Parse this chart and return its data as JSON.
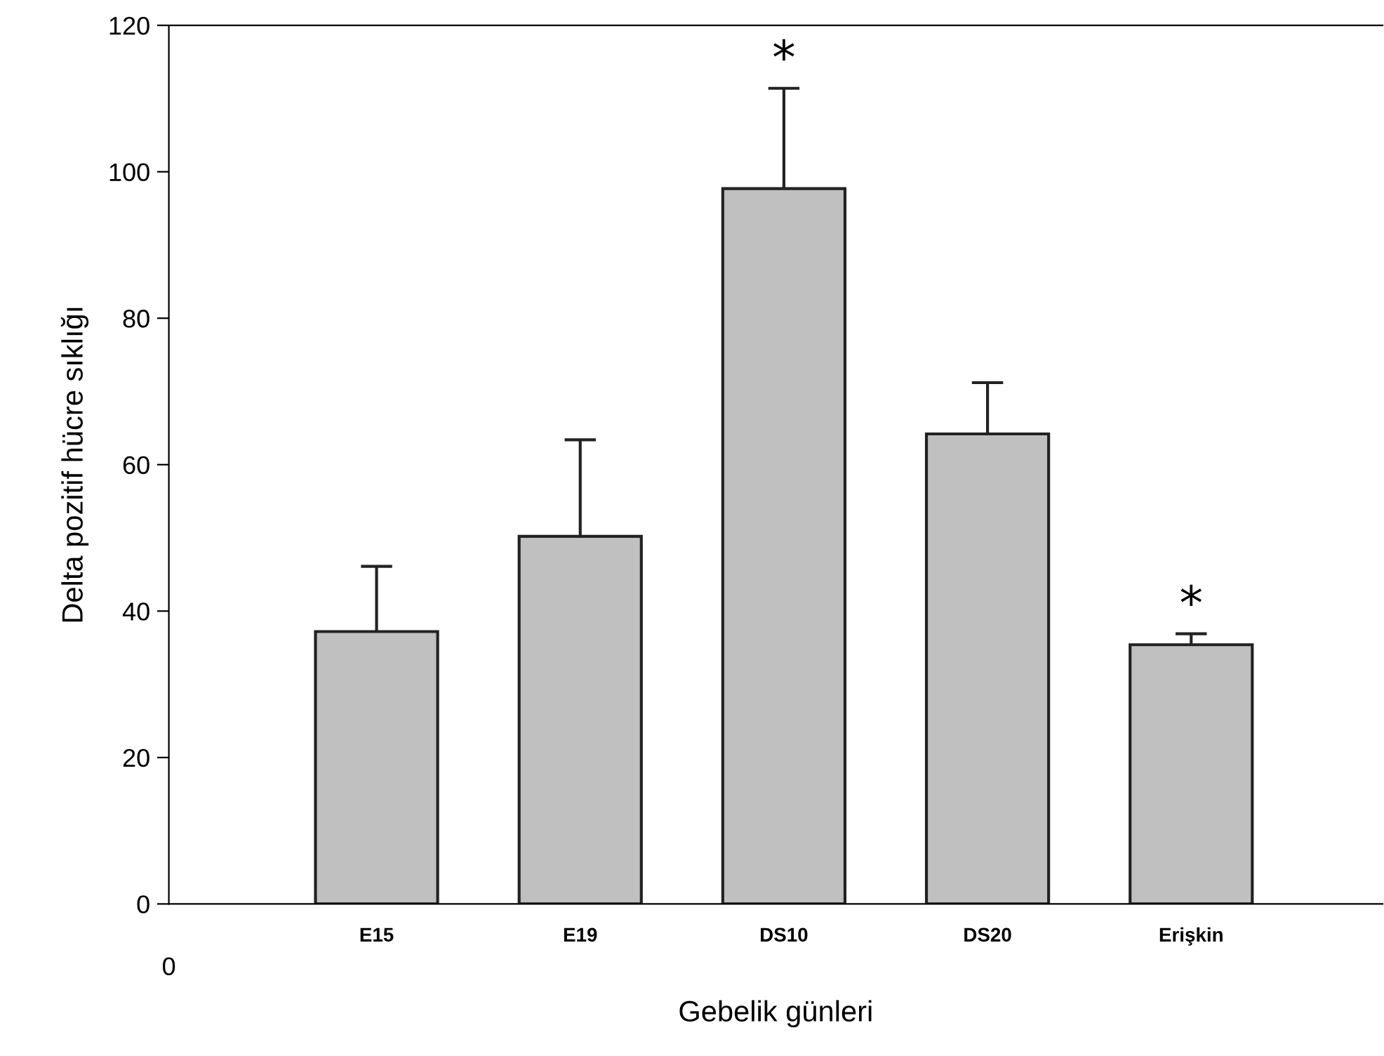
{
  "chart_data": {
    "type": "bar",
    "xlabel": "Gebelik günleri",
    "ylabel": "Delta pozitif hücre sıklığı",
    "categories": [
      "E15",
      "E19",
      "DS10",
      "DS20",
      "Erişkin"
    ],
    "values": [
      37.2,
      50.2,
      97.7,
      64.2,
      35.4
    ],
    "errors": [
      8.9,
      13.2,
      13.7,
      7.0,
      1.5
    ],
    "color": "#c0c0c0",
    "ylim": [
      0,
      120
    ],
    "yticks": [
      0,
      20,
      40,
      60,
      80,
      100,
      120
    ],
    "annotations": [
      {
        "text": "*",
        "x": "DS10",
        "y": 111.4
      },
      {
        "text": "*",
        "x": "Erişkin",
        "y": 36.9
      },
      "0"
    ],
    "grid": false,
    "legend": false
  }
}
